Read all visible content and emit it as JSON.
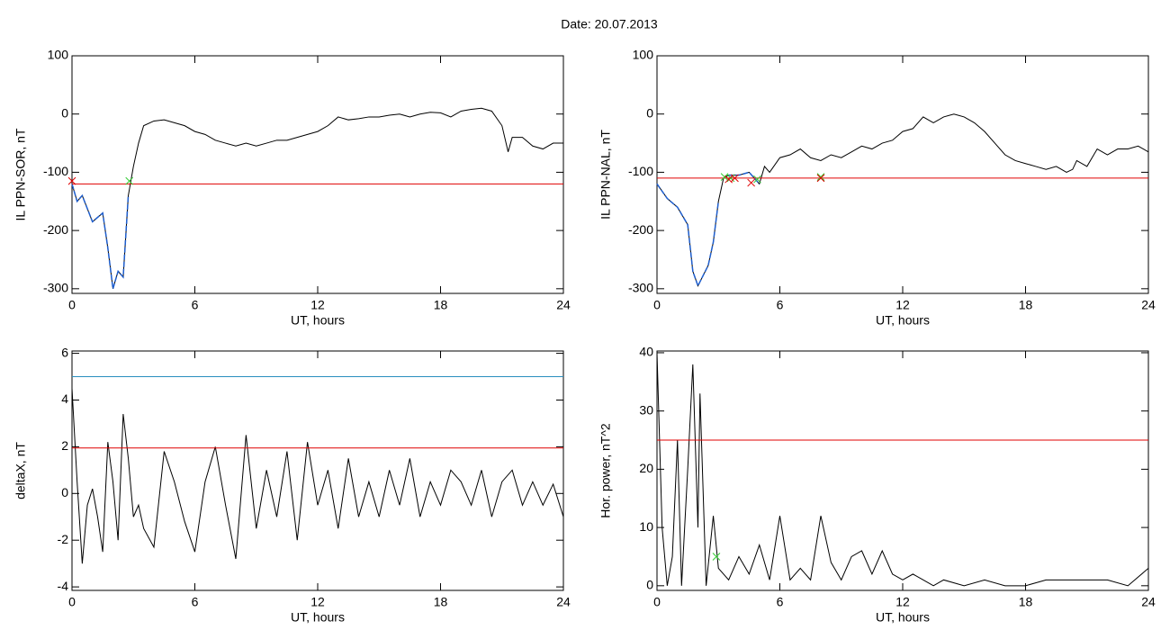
{
  "title": "Date:  20.07.2013",
  "chart_data": [
    {
      "type": "line",
      "ylabel": "IL PPN-SOR, nT",
      "xlabel": "UT, hours",
      "xlim": [
        0,
        24
      ],
      "ylim": [
        -308,
        100
      ],
      "xticks": [
        0,
        6,
        12,
        18,
        24
      ],
      "yticks": [
        -300,
        -200,
        -100,
        0,
        100
      ],
      "x": [
        0,
        0.25,
        0.5,
        1,
        1.5,
        1.75,
        2,
        2.25,
        2.5,
        2.75,
        3,
        3.25,
        3.5,
        4,
        4.5,
        5,
        5.5,
        6,
        6.5,
        7,
        7.5,
        8,
        8.5,
        9,
        9.5,
        10,
        10.5,
        11,
        11.5,
        12,
        12.5,
        13,
        13.5,
        14,
        14.5,
        15,
        15.5,
        16,
        16.5,
        17,
        17.5,
        18,
        18.5,
        19,
        19.5,
        20,
        20.5,
        21,
        21.3,
        21.5,
        22,
        22.5,
        23,
        23.5,
        24
      ],
      "series": [
        {
          "color": "#000000",
          "values": [
            -120,
            -150,
            -140,
            -185,
            -170,
            -230,
            -300,
            -270,
            -280,
            -140,
            -90,
            -50,
            -20,
            -12,
            -10,
            -15,
            -20,
            -30,
            -35,
            -45,
            -50,
            -55,
            -50,
            -55,
            -50,
            -45,
            -45,
            -40,
            -35,
            -30,
            -20,
            -5,
            -10,
            -8,
            -5,
            -5,
            -2,
            0,
            -5,
            0,
            3,
            2,
            -5,
            5,
            8,
            10,
            5,
            -20,
            -65,
            -40,
            -40,
            -55,
            -60,
            -50,
            -50
          ]
        },
        {
          "color": "#1f5fcf",
          "values": [
            -120,
            -150,
            -140,
            -185,
            -170,
            -230,
            -300,
            -270,
            -280,
            -140,
            null,
            null,
            null,
            null,
            null,
            null,
            null,
            null,
            null,
            null,
            null,
            null,
            null,
            null,
            null,
            null,
            null,
            null,
            null,
            null,
            null,
            null,
            null,
            null,
            null,
            null,
            null,
            null,
            null,
            null,
            null,
            null,
            null,
            null,
            null,
            null,
            null,
            null,
            null,
            null,
            null,
            null,
            null,
            null,
            null
          ]
        }
      ],
      "hlines": [
        {
          "value": -120,
          "color": "#e00000"
        }
      ],
      "markers": {
        "x": [
          0,
          2.8
        ],
        "y": [
          -115,
          -115
        ],
        "colors": [
          "#e00000",
          "#33cc33"
        ]
      }
    },
    {
      "type": "line",
      "ylabel": "IL PPN-NAL, nT",
      "xlabel": "UT, hours",
      "xlim": [
        0,
        24
      ],
      "ylim": [
        -308,
        100
      ],
      "xticks": [
        0,
        6,
        12,
        18,
        24
      ],
      "yticks": [
        -300,
        -200,
        -100,
        0,
        100
      ],
      "x": [
        0,
        0.5,
        1,
        1.5,
        1.75,
        2,
        2.5,
        2.75,
        3,
        3.25,
        3.5,
        4,
        4.5,
        5,
        5.25,
        5.5,
        6,
        6.5,
        7,
        7.5,
        8,
        8.5,
        9,
        9.5,
        10,
        10.5,
        11,
        11.5,
        12,
        12.5,
        13,
        13.5,
        14,
        14.5,
        15,
        15.5,
        16,
        16.5,
        17,
        17.5,
        18,
        18.5,
        19,
        19.5,
        20,
        20.3,
        20.5,
        21,
        21.5,
        22,
        22.5,
        23,
        23.5,
        24
      ],
      "series": [
        {
          "color": "#000000",
          "values": [
            -120,
            -145,
            -160,
            -190,
            -270,
            -295,
            -260,
            -220,
            -150,
            -110,
            -105,
            -105,
            -100,
            -120,
            -90,
            -100,
            -75,
            -70,
            -60,
            -75,
            -80,
            -70,
            -75,
            -65,
            -55,
            -60,
            -50,
            -45,
            -30,
            -25,
            -5,
            -15,
            -5,
            0,
            -5,
            -15,
            -30,
            -50,
            -70,
            -80,
            -85,
            -90,
            -95,
            -90,
            -100,
            -95,
            -80,
            -90,
            -60,
            -70,
            -60,
            -60,
            -55,
            -65
          ]
        },
        {
          "color": "#1f5fcf",
          "values": [
            -120,
            -145,
            -160,
            -190,
            -270,
            -295,
            -260,
            -220,
            -150,
            null,
            -105,
            -105,
            -100,
            -120,
            null,
            null,
            null,
            null,
            null,
            null,
            null,
            null,
            null,
            null,
            null,
            null,
            null,
            null,
            null,
            null,
            null,
            null,
            null,
            null,
            null,
            null,
            null,
            null,
            null,
            null,
            null,
            null,
            null,
            null,
            null,
            null,
            null,
            null,
            null,
            null,
            null,
            null,
            null,
            null
          ]
        }
      ],
      "hlines": [
        {
          "value": -110,
          "color": "#e00000"
        }
      ],
      "markers": {
        "x": [
          3.3,
          3.6,
          4.9,
          8,
          3.5,
          3.8,
          4.6,
          8
        ],
        "y": [
          -108,
          -110,
          -112,
          -108,
          -112,
          -110,
          -118,
          -110
        ],
        "colors": [
          "#33cc33",
          "#33cc33",
          "#33cc33",
          "#33cc33",
          "#e00000",
          "#e00000",
          "#e00000",
          "#e00000"
        ]
      }
    },
    {
      "type": "line",
      "ylabel": "deltaX, nT",
      "xlabel": "UT, hours",
      "xlim": [
        0,
        24
      ],
      "ylim": [
        -4.15,
        6.1
      ],
      "xticks": [
        0,
        6,
        12,
        18,
        24
      ],
      "yticks": [
        -4,
        -2,
        0,
        2,
        4,
        6
      ],
      "x": [
        0,
        0.25,
        0.5,
        0.75,
        1,
        1.25,
        1.5,
        1.75,
        2,
        2.25,
        2.5,
        2.75,
        3,
        3.25,
        3.5,
        4,
        4.5,
        5,
        5.5,
        6,
        6.5,
        7,
        7.5,
        8,
        8.5,
        9,
        9.5,
        10,
        10.5,
        11,
        11.5,
        12,
        12.5,
        13,
        13.5,
        14,
        14.5,
        15,
        15.5,
        16,
        16.5,
        17,
        17.5,
        18,
        18.5,
        19,
        19.5,
        20,
        20.5,
        21,
        21.5,
        22,
        22.5,
        23,
        23.5,
        24
      ],
      "series": [
        {
          "color": "#000000",
          "values": [
            4.5,
            0.5,
            -3,
            -0.5,
            0.2,
            -1,
            -2.5,
            2.2,
            0.5,
            -2,
            3.4,
            1.5,
            -1,
            -0.5,
            -1.5,
            -2.3,
            1.8,
            0.5,
            -1.2,
            -2.5,
            0.5,
            2.0,
            -0.5,
            -2.8,
            2.5,
            -1.5,
            1.0,
            -1.0,
            1.8,
            -2.0,
            2.2,
            -0.5,
            1.0,
            -1.5,
            1.5,
            -1.0,
            0.5,
            -1.0,
            1.0,
            -0.5,
            1.5,
            -1.0,
            0.5,
            -0.5,
            1.0,
            0.5,
            -0.5,
            1.0,
            -1.0,
            0.5,
            1.0,
            -0.5,
            0.5,
            -0.5,
            0.4,
            -1.0
          ]
        }
      ],
      "hlines": [
        {
          "value": 5,
          "color": "#2a8fbf"
        },
        {
          "value": 1.95,
          "color": "#e00000"
        }
      ]
    },
    {
      "type": "line",
      "ylabel": "Hor. power, nT^2",
      "xlabel": "UT, hours",
      "xlim": [
        0,
        24
      ],
      "ylim": [
        -0.8,
        40.3
      ],
      "xticks": [
        0,
        6,
        12,
        18,
        24
      ],
      "yticks": [
        0,
        10,
        20,
        30,
        40
      ],
      "x": [
        0,
        0.25,
        0.5,
        0.75,
        1,
        1.2,
        1.5,
        1.75,
        2,
        2.1,
        2.4,
        2.75,
        3,
        3.5,
        4,
        4.5,
        5,
        5.5,
        6,
        6.5,
        7,
        7.5,
        8,
        8.5,
        9,
        9.5,
        10,
        10.5,
        11,
        11.5,
        12,
        12.5,
        13,
        13.5,
        14,
        15,
        16,
        17,
        18,
        19,
        20,
        21,
        22,
        23,
        24
      ],
      "series": [
        {
          "color": "#000000",
          "values": [
            40,
            10,
            0,
            5,
            25,
            0,
            20,
            38,
            10,
            33,
            0,
            12,
            3,
            1,
            5,
            2,
            7,
            1,
            12,
            1,
            3,
            1,
            12,
            4,
            1,
            5,
            6,
            2,
            6,
            2,
            1,
            2,
            1,
            0,
            1,
            0,
            1,
            0,
            0,
            1,
            1,
            1,
            1,
            0,
            3
          ]
        }
      ],
      "hlines": [
        {
          "value": 25,
          "color": "#e00000"
        }
      ],
      "markers": {
        "x": [
          2.9
        ],
        "y": [
          5
        ],
        "colors": [
          "#33cc33"
        ]
      }
    }
  ]
}
